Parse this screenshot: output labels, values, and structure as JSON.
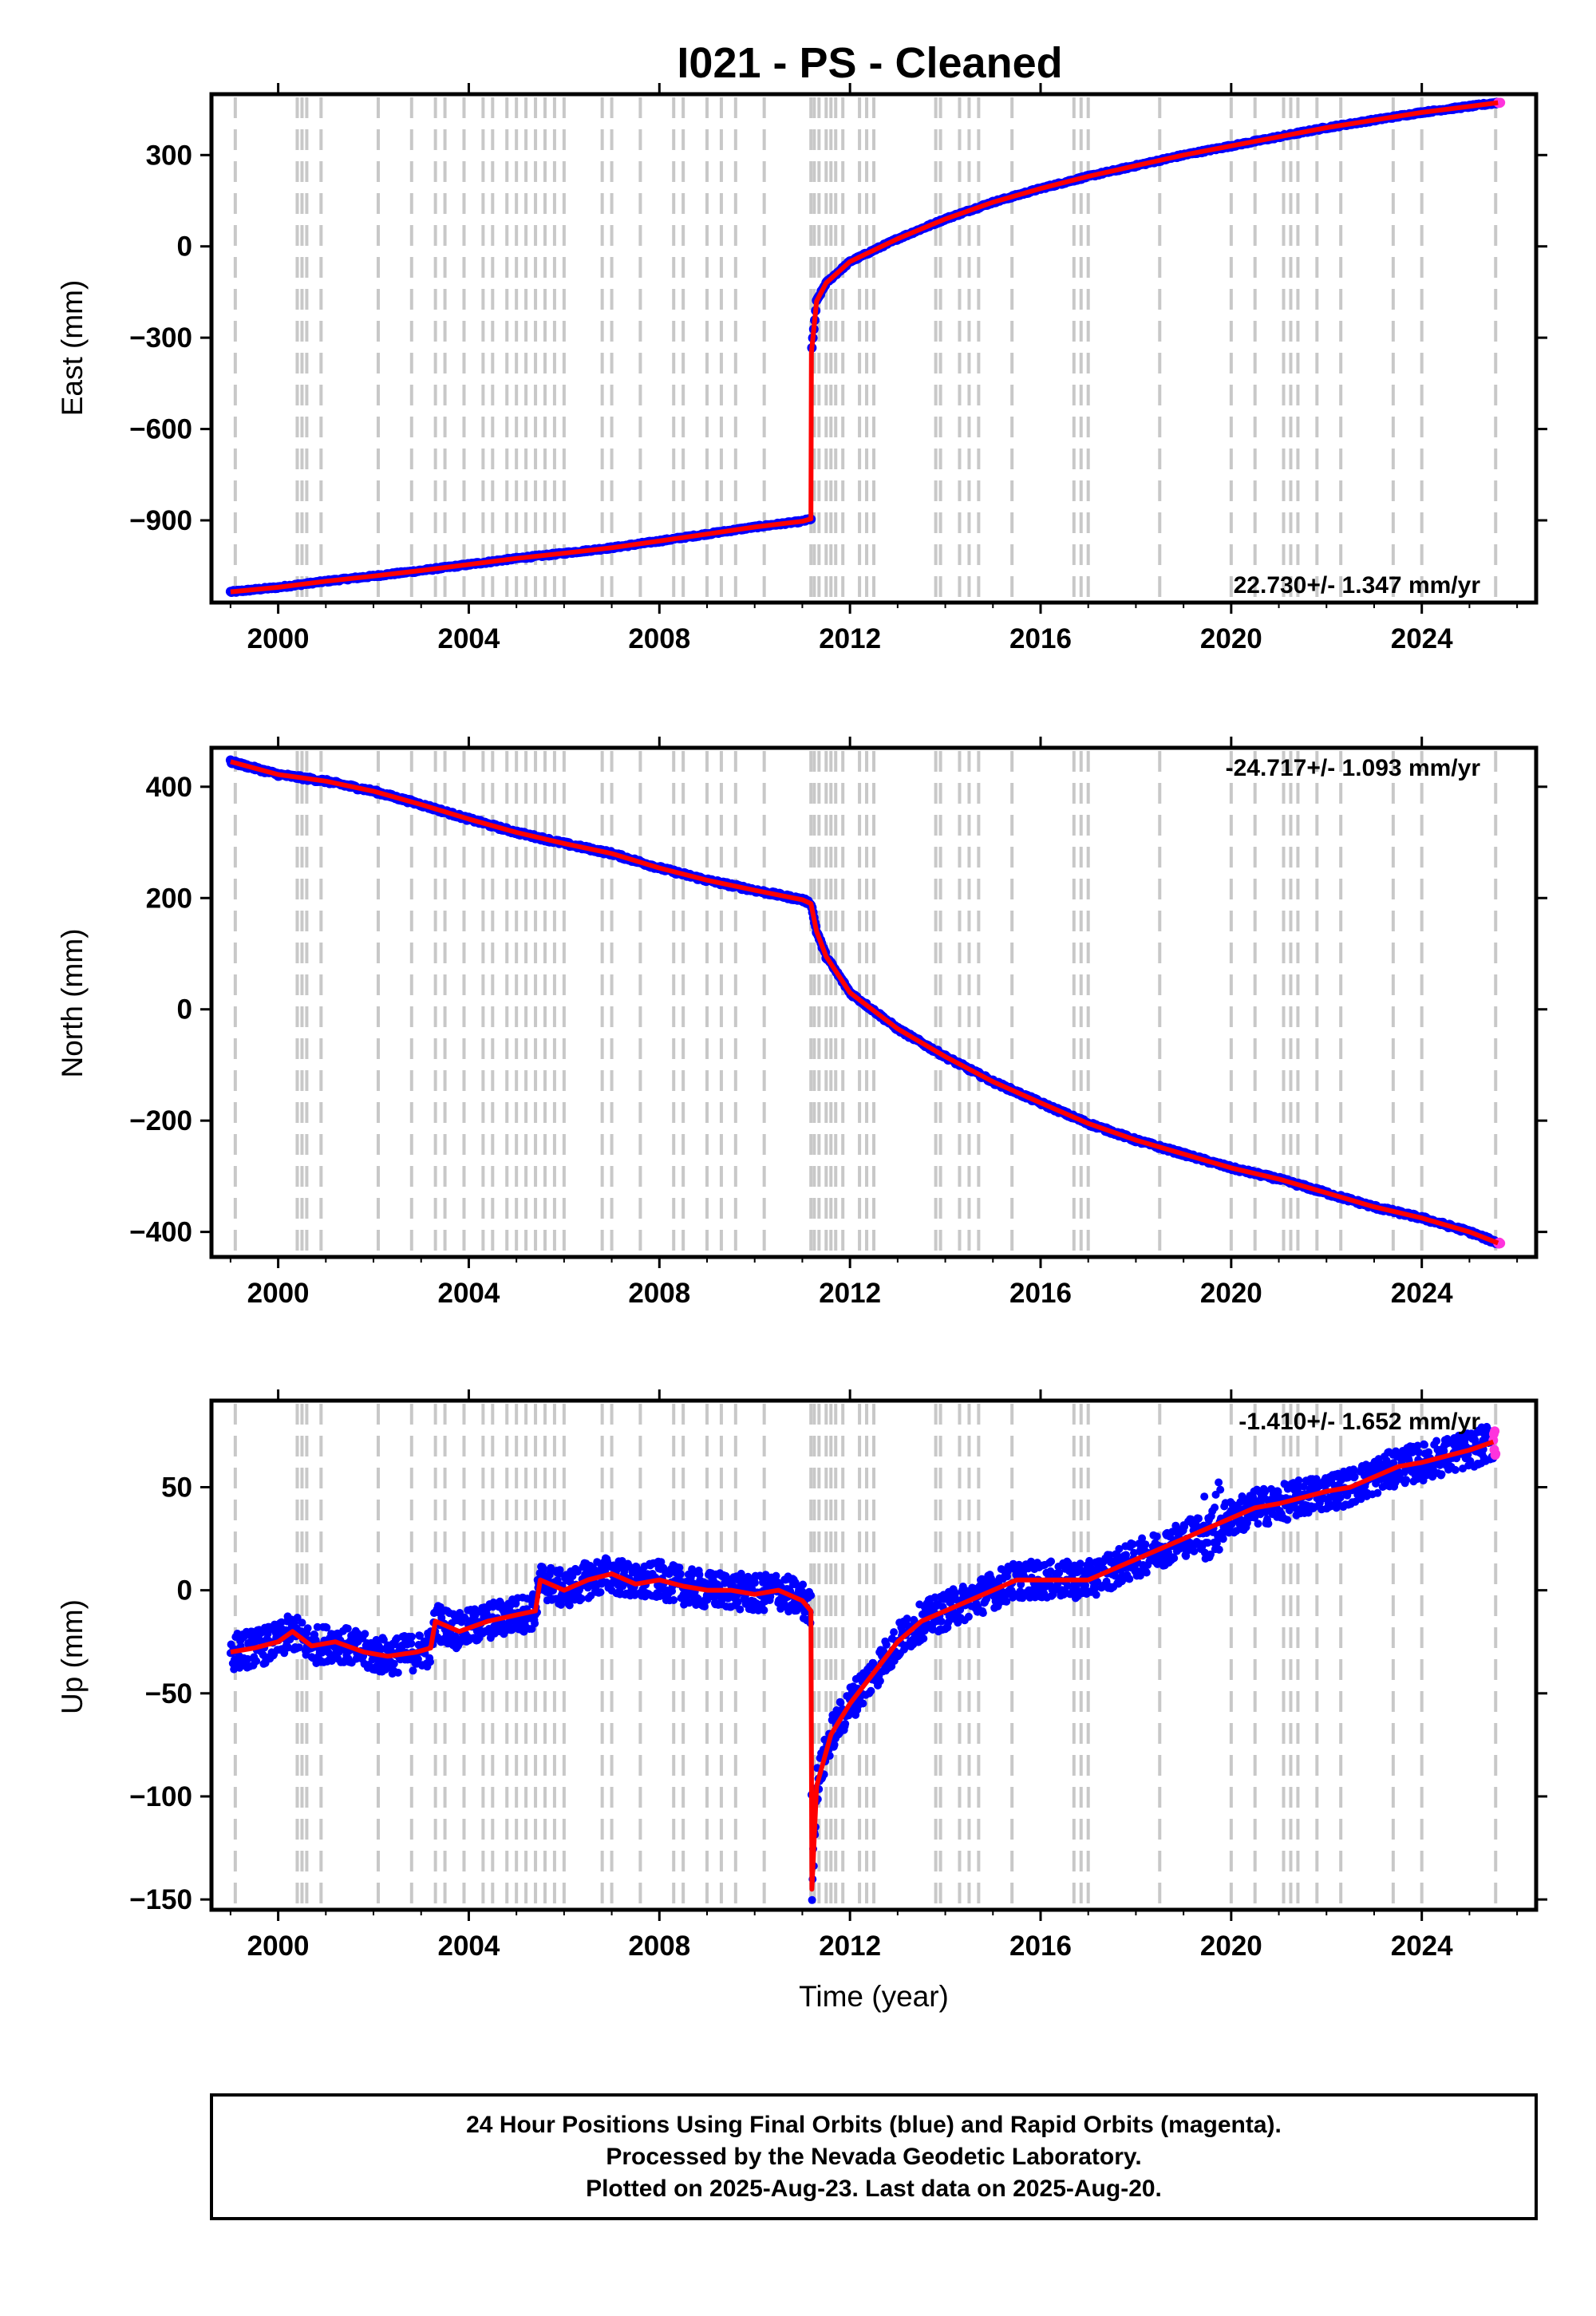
{
  "title": "I021  - PS - Cleaned",
  "xlabel": "Time (year)",
  "caption": {
    "lines": [
      "24 Hour Positions Using Final Orbits (blue) and Rapid Orbits (magenta).",
      "Processed by the Nevada Geodetic Laboratory.",
      "Plotted on 2025-Aug-23. Last data on 2025-Aug-20."
    ]
  },
  "colors": {
    "final_orbits": "#0000ff",
    "rapid_orbits": "#ff33dd",
    "model": "#ff0000",
    "equipment_changes": "#c8c8c8"
  },
  "chart_data": [
    {
      "type": "line",
      "component": "East",
      "ylabel": "East (mm)",
      "xlim": [
        1998.6,
        2026.4
      ],
      "ylim": [
        -1170,
        500
      ],
      "xticks": [
        "2000",
        "2004",
        "2008",
        "2012",
        "2016",
        "2020",
        "2024"
      ],
      "yticks": [
        "300",
        "0",
        "-300",
        "-600",
        "-900"
      ],
      "rate_label": "22.730+/- 1.347 mm/yr",
      "rate_position": "bottom-right",
      "series": [
        {
          "x": [
            1999.0,
            2000.0,
            2001.0,
            2002.0,
            2003.0,
            2004.0,
            2005.0,
            2006.0,
            2007.0,
            2008.0,
            2009.0,
            2010.0,
            2011.0,
            2011.18,
            2011.19,
            2011.3,
            2011.5,
            2012.0,
            2013.0,
            2014.0,
            2015.0,
            2016.0,
            2017.0,
            2018.0,
            2019.0,
            2020.0,
            2021.0,
            2022.0,
            2023.0,
            2024.0,
            2025.0,
            2025.6
          ],
          "y": [
            -1135,
            -1120,
            -1100,
            -1083,
            -1065,
            -1045,
            -1025,
            -1008,
            -990,
            -968,
            -945,
            -922,
            -903,
            -895,
            -350,
            -180,
            -120,
            -50,
            25,
            90,
            145,
            190,
            230,
            265,
            300,
            330,
            360,
            390,
            415,
            440,
            460,
            472
          ]
        }
      ]
    },
    {
      "type": "line",
      "component": "North",
      "ylabel": "North (mm)",
      "xlim": [
        1998.6,
        2026.4
      ],
      "ylim": [
        -445,
        470
      ],
      "xticks": [
        "2000",
        "2004",
        "2008",
        "2012",
        "2016",
        "2020",
        "2024"
      ],
      "yticks": [
        "400",
        "200",
        "0",
        "-200",
        "-400"
      ],
      "rate_label": "-24.717+/- 1.093 mm/yr",
      "rate_position": "top-right",
      "series": [
        {
          "x": [
            1999.0,
            2000.0,
            2001.0,
            2002.0,
            2003.0,
            2004.0,
            2005.0,
            2006.0,
            2007.0,
            2008.0,
            2009.0,
            2010.0,
            2011.0,
            2011.18,
            2011.3,
            2011.5,
            2012.0,
            2013.0,
            2014.0,
            2015.0,
            2016.0,
            2017.0,
            2018.0,
            2019.0,
            2020.0,
            2021.0,
            2022.0,
            2023.0,
            2024.0,
            2025.0,
            2025.6
          ],
          "y": [
            445,
            422,
            410,
            392,
            368,
            342,
            318,
            298,
            280,
            254,
            232,
            214,
            197,
            190,
            140,
            95,
            30,
            -35,
            -85,
            -130,
            -168,
            -205,
            -235,
            -260,
            -285,
            -305,
            -330,
            -355,
            -375,
            -400,
            -420
          ]
        }
      ]
    },
    {
      "type": "scatter",
      "component": "Up",
      "ylabel": "Up (mm)",
      "xlim": [
        1998.6,
        2026.4
      ],
      "ylim": [
        -155,
        92
      ],
      "xticks": [
        "2000",
        "2004",
        "2008",
        "2012",
        "2016",
        "2020",
        "2024"
      ],
      "yticks": [
        "50",
        "0",
        "-50",
        "-100",
        "-150"
      ],
      "rate_label": "-1.410+/- 1.652 mm/yr",
      "rate_position": "top-right",
      "series": [
        {
          "x": [
            1999.0,
            1999.5,
            2000.0,
            2000.3,
            2000.7,
            2001.2,
            2001.8,
            2002.3,
            2002.9,
            2003.2,
            2003.3,
            2003.8,
            2004.4,
            2005.0,
            2005.4,
            2005.5,
            2006.0,
            2006.5,
            2007.0,
            2007.5,
            2008.0,
            2008.5,
            2009.0,
            2009.5,
            2010.0,
            2010.5,
            2011.0,
            2011.18,
            2011.2,
            2011.3,
            2011.6,
            2012.0,
            2012.5,
            2013.0,
            2013.5,
            2014.0,
            2014.5,
            2015.0,
            2015.5,
            2016.0,
            2016.5,
            2017.0,
            2017.5,
            2018.0,
            2018.5,
            2019.0,
            2019.5,
            2020.0,
            2020.5,
            2021.0,
            2021.5,
            2022.0,
            2022.5,
            2023.0,
            2023.5,
            2024.0,
            2024.5,
            2025.0,
            2025.5
          ],
          "y": [
            -30,
            -28,
            -25,
            -20,
            -27,
            -25,
            -30,
            -32,
            -30,
            -28,
            -15,
            -20,
            -15,
            -12,
            -10,
            5,
            0,
            5,
            8,
            3,
            5,
            2,
            0,
            0,
            -2,
            0,
            -5,
            -10,
            -145,
            -95,
            -70,
            -55,
            -40,
            -25,
            -15,
            -10,
            -5,
            0,
            5,
            5,
            5,
            5,
            10,
            15,
            20,
            25,
            30,
            35,
            40,
            42,
            45,
            48,
            50,
            55,
            60,
            62,
            65,
            68,
            72
          ]
        }
      ]
    }
  ]
}
